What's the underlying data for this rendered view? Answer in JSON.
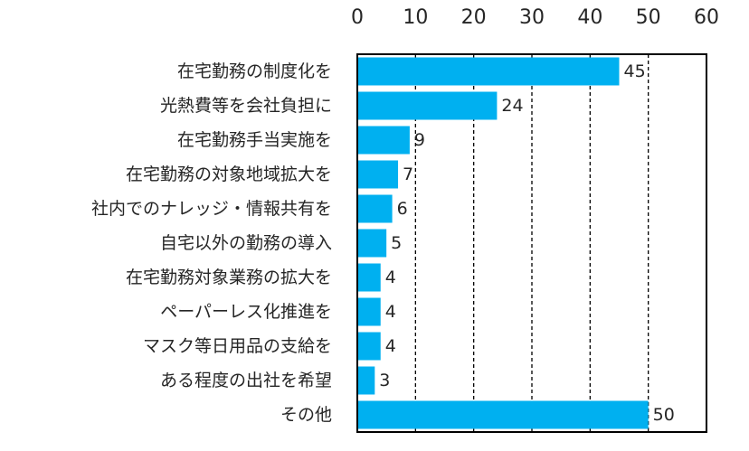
{
  "chart_data": {
    "type": "bar",
    "orientation": "horizontal",
    "categories": [
      "在宅勤務の制度化を",
      "光熱費等を会社負担に",
      "在宅勤務手当実施を",
      "在宅勤務の対象地域拡大を",
      "社内でのナレッジ・情報共有を",
      "自宅以外の勤務の導入",
      "在宅勤務対象業務の拡大を",
      "ペーパーレス化推進を",
      "マスク等日用品の支給を",
      "ある程度の出社を希望",
      "その他"
    ],
    "values": [
      45,
      24,
      9,
      7,
      6,
      5,
      4,
      4,
      4,
      3,
      50
    ],
    "value_labels": [
      "45",
      "24",
      "9",
      "7",
      "6",
      "5",
      "4",
      "4",
      "4",
      "3",
      "50"
    ],
    "x_ticks": [
      "0",
      "10",
      "20",
      "30",
      "40",
      "50",
      "60"
    ],
    "xlim": [
      0,
      60
    ],
    "x_axis_position": "top",
    "grid": "vertical dashed",
    "bar_color": "#00b0f0",
    "title": "",
    "xlabel": "",
    "ylabel": ""
  }
}
